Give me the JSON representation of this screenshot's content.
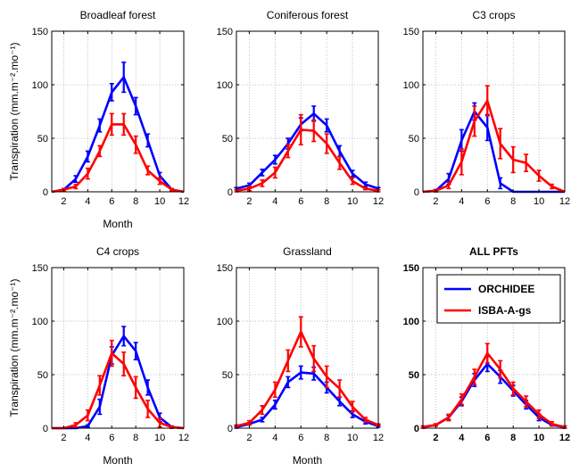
{
  "chart_data": [
    {
      "type": "line",
      "title": "Broadleaf forest",
      "xlabel": "Month",
      "ylabel": "Transpiration (mm.m⁻².mo⁻¹)",
      "xlim": [
        1,
        12
      ],
      "ylim": [
        0,
        150
      ],
      "xticks": [
        2,
        4,
        6,
        8,
        10,
        12
      ],
      "yticks": [
        0,
        50,
        100,
        150
      ],
      "grid": true,
      "x": [
        1,
        2,
        3,
        4,
        5,
        6,
        7,
        8,
        9,
        10,
        11,
        12
      ],
      "series": [
        {
          "name": "ORCHIDEE",
          "color": "#0000ff",
          "values": [
            0,
            2,
            12,
            33,
            62,
            93,
            107,
            80,
            48,
            15,
            2,
            0
          ],
          "err": [
            0,
            1,
            3,
            5,
            6,
            8,
            14,
            8,
            6,
            3,
            1,
            0
          ]
        },
        {
          "name": "ISBA-A-gs",
          "color": "#ff0000",
          "values": [
            0,
            2,
            5,
            17,
            38,
            63,
            63,
            44,
            20,
            10,
            2,
            0
          ],
          "err": [
            0,
            1,
            2,
            5,
            5,
            10,
            10,
            8,
            4,
            3,
            1,
            0
          ]
        }
      ]
    },
    {
      "type": "line",
      "title": "Coniferous forest",
      "xlabel": "",
      "ylabel": "",
      "xlim": [
        1,
        12
      ],
      "ylim": [
        0,
        150
      ],
      "xticks": [
        2,
        4,
        6,
        8,
        10,
        12
      ],
      "yticks": [
        0,
        50,
        100,
        150
      ],
      "grid": true,
      "x": [
        1,
        2,
        3,
        4,
        5,
        6,
        7,
        8,
        9,
        10,
        11,
        12
      ],
      "series": [
        {
          "name": "ORCHIDEE",
          "color": "#0000ff",
          "values": [
            3,
            6,
            18,
            30,
            45,
            63,
            73,
            62,
            38,
            17,
            7,
            3
          ],
          "err": [
            1,
            2,
            3,
            4,
            5,
            6,
            7,
            6,
            5,
            3,
            2,
            1
          ]
        },
        {
          "name": "ISBA-A-gs",
          "color": "#ff0000",
          "values": [
            1,
            3,
            8,
            18,
            38,
            58,
            57,
            45,
            27,
            10,
            3,
            1
          ],
          "err": [
            1,
            2,
            3,
            5,
            6,
            14,
            10,
            9,
            6,
            3,
            1,
            1
          ]
        }
      ]
    },
    {
      "type": "line",
      "title": "C3 crops",
      "xlabel": "",
      "ylabel": "",
      "xlim": [
        1,
        12
      ],
      "ylim": [
        0,
        150
      ],
      "xticks": [
        2,
        4,
        6,
        8,
        10,
        12
      ],
      "yticks": [
        0,
        50,
        100,
        150
      ],
      "grid": true,
      "x": [
        1,
        2,
        3,
        4,
        5,
        6,
        7,
        8,
        9,
        10,
        11,
        12
      ],
      "series": [
        {
          "name": "ORCHIDEE",
          "color": "#0000ff",
          "values": [
            0,
            1,
            12,
            48,
            75,
            60,
            8,
            0,
            0,
            0,
            0,
            0
          ],
          "err": [
            0,
            1,
            5,
            10,
            8,
            12,
            5,
            0,
            0,
            0,
            0,
            0
          ]
        },
        {
          "name": "ISBA-A-gs",
          "color": "#ff0000",
          "values": [
            0,
            1,
            6,
            28,
            66,
            85,
            45,
            30,
            27,
            15,
            5,
            0
          ],
          "err": [
            0,
            1,
            3,
            12,
            14,
            14,
            14,
            12,
            8,
            5,
            2,
            0
          ]
        }
      ]
    },
    {
      "type": "line",
      "title": "C4 crops",
      "xlabel": "Month",
      "ylabel": "Transpiration (mm.m⁻².mo⁻¹)",
      "xlim": [
        1,
        12
      ],
      "ylim": [
        0,
        150
      ],
      "xticks": [
        2,
        4,
        6,
        8,
        10,
        12
      ],
      "yticks": [
        0,
        50,
        100,
        150
      ],
      "grid": true,
      "x": [
        1,
        2,
        3,
        4,
        5,
        6,
        7,
        8,
        9,
        10,
        11,
        12
      ],
      "series": [
        {
          "name": "ORCHIDEE",
          "color": "#0000ff",
          "values": [
            0,
            0,
            0,
            2,
            20,
            68,
            86,
            72,
            38,
            10,
            1,
            0
          ],
          "err": [
            0,
            0,
            0,
            1,
            7,
            8,
            9,
            8,
            7,
            4,
            1,
            0
          ]
        },
        {
          "name": "ISBA-A-gs",
          "color": "#ff0000",
          "values": [
            0,
            0,
            3,
            12,
            40,
            70,
            60,
            38,
            18,
            5,
            1,
            0
          ],
          "err": [
            0,
            0,
            2,
            5,
            9,
            12,
            11,
            10,
            8,
            4,
            1,
            0
          ]
        }
      ]
    },
    {
      "type": "line",
      "title": "Grassland",
      "xlabel": "Month",
      "ylabel": "",
      "xlim": [
        1,
        12
      ],
      "ylim": [
        0,
        150
      ],
      "xticks": [
        2,
        4,
        6,
        8,
        10,
        12
      ],
      "yticks": [
        0,
        50,
        100,
        150
      ],
      "grid": true,
      "x": [
        1,
        2,
        3,
        4,
        5,
        6,
        7,
        8,
        9,
        10,
        11,
        12
      ],
      "series": [
        {
          "name": "ORCHIDEE",
          "color": "#0000ff",
          "values": [
            1,
            4,
            8,
            22,
            43,
            52,
            51,
            38,
            25,
            13,
            6,
            2
          ],
          "err": [
            1,
            1,
            2,
            4,
            5,
            6,
            6,
            5,
            4,
            3,
            2,
            1
          ]
        },
        {
          "name": "ISBA-A-gs",
          "color": "#ff0000",
          "values": [
            2,
            5,
            17,
            36,
            63,
            90,
            65,
            48,
            37,
            20,
            8,
            3
          ],
          "err": [
            1,
            2,
            4,
            7,
            10,
            14,
            12,
            10,
            8,
            5,
            2,
            1
          ]
        }
      ]
    },
    {
      "type": "line",
      "title": "ALL PFTs",
      "xlabel": "",
      "ylabel": "",
      "xlim": [
        1,
        12
      ],
      "ylim": [
        0,
        150
      ],
      "xticks": [
        2,
        4,
        6,
        8,
        10,
        12
      ],
      "yticks": [
        0,
        50,
        100,
        150
      ],
      "grid": true,
      "legend": "top-right",
      "x": [
        1,
        2,
        3,
        4,
        5,
        6,
        7,
        8,
        9,
        10,
        11,
        12
      ],
      "series": [
        {
          "name": "ORCHIDEE",
          "color": "#0000ff",
          "values": [
            1,
            3,
            10,
            25,
            45,
            60,
            48,
            35,
            22,
            10,
            3,
            1
          ],
          "err": [
            1,
            1,
            2,
            4,
            6,
            7,
            6,
            5,
            4,
            3,
            1,
            1
          ]
        },
        {
          "name": "ISBA-A-gs",
          "color": "#ff0000",
          "values": [
            1,
            3,
            10,
            27,
            48,
            70,
            55,
            37,
            25,
            13,
            4,
            1
          ],
          "err": [
            1,
            1,
            3,
            5,
            7,
            9,
            8,
            6,
            5,
            4,
            2,
            1
          ]
        }
      ]
    }
  ]
}
